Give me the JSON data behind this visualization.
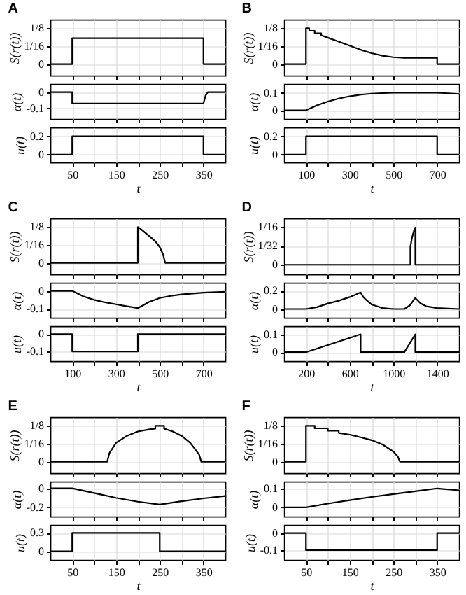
{
  "chart_data": [
    {
      "type": "line",
      "title": "A",
      "ylabel": "S(r(t))",
      "tick_labels": "y",
      "grid": true,
      "xlim": [
        0,
        400
      ],
      "xticks": [
        50,
        {
          "value": 100,
          "label": null
        },
        150,
        {
          "value": 200,
          "label": null
        },
        250,
        {
          "value": 300,
          "label": null
        },
        350
      ],
      "ylim": [
        -0.04,
        0.155
      ],
      "yticks": [
        0,
        {
          "value": 0.0625,
          "label": "1/16"
        },
        {
          "value": 0.125,
          "label": "1/8"
        }
      ],
      "x": [
        0,
        50,
        50,
        350,
        350,
        400
      ],
      "series": [
        {
          "color": "#000000",
          "values": [
            0,
            0,
            0.09,
            0.09,
            0,
            0
          ]
        }
      ]
    },
    {
      "type": "line",
      "ylabel": "α(t)",
      "tick_labels": "y",
      "grid": true,
      "xlim": [
        0,
        400
      ],
      "xticks": [
        50,
        {
          "value": 100,
          "label": null
        },
        150,
        {
          "value": 200,
          "label": null
        },
        250,
        {
          "value": 300,
          "label": null
        },
        350
      ],
      "ylim": [
        -0.165,
        0.05
      ],
      "yticks": [
        -0.1,
        0
      ],
      "x": [
        0,
        50,
        50,
        350,
        355,
        360,
        400
      ],
      "series": [
        {
          "color": "#000000",
          "values": [
            0,
            0,
            -0.07,
            -0.07,
            -0.02,
            0,
            0
          ]
        }
      ]
    },
    {
      "type": "line",
      "ylabel": "u(t)",
      "xlabel": "t",
      "grid": true,
      "xlim": [
        0,
        400
      ],
      "xticks": [
        50,
        {
          "value": 100,
          "label": null
        },
        150,
        {
          "value": 200,
          "label": null
        },
        250,
        {
          "value": 300,
          "label": null
        },
        350
      ],
      "ylim": [
        -0.085,
        0.295
      ],
      "yticks": [
        0,
        0.2
      ],
      "x": [
        0,
        50,
        50,
        350,
        350,
        400
      ],
      "series": [
        {
          "color": "#000000",
          "values": [
            0,
            0,
            0.2,
            0.2,
            0,
            0
          ]
        }
      ]
    },
    {
      "type": "line",
      "title": "B",
      "ylabel": "S(r(t))",
      "tick_labels": "y",
      "grid": true,
      "xlim": [
        0,
        800
      ],
      "xticks": [
        100,
        {
          "value": 200,
          "label": null
        },
        300,
        {
          "value": 400,
          "label": null
        },
        500,
        {
          "value": 600,
          "label": null
        },
        700
      ],
      "ylim": [
        -0.04,
        0.155
      ],
      "yticks": [
        0,
        {
          "value": 0.0625,
          "label": "1/16"
        },
        {
          "value": 0.125,
          "label": "1/8"
        }
      ],
      "x": [
        0,
        100,
        100,
        115,
        115,
        140,
        140,
        170,
        170,
        200,
        250,
        300,
        350,
        400,
        450,
        500,
        550,
        600,
        700,
        700,
        800
      ],
      "series": [
        {
          "color": "#000000",
          "values": [
            0,
            0,
            0.125,
            0.125,
            0.116,
            0.116,
            0.107,
            0.107,
            0.1,
            0.092,
            0.078,
            0.064,
            0.05,
            0.038,
            0.029,
            0.024,
            0.022,
            0.022,
            0.022,
            0,
            0
          ]
        }
      ]
    },
    {
      "type": "line",
      "ylabel": "α(t)",
      "tick_labels": "y",
      "grid": true,
      "xlim": [
        0,
        800
      ],
      "xticks": [
        100,
        {
          "value": 200,
          "label": null
        },
        300,
        {
          "value": 400,
          "label": null
        },
        500,
        {
          "value": 600,
          "label": null
        },
        700
      ],
      "ylim": [
        -0.05,
        0.15
      ],
      "yticks": [
        0,
        0.1
      ],
      "x": [
        0,
        100,
        150,
        200,
        250,
        300,
        350,
        400,
        450,
        500,
        600,
        700,
        750,
        800
      ],
      "series": [
        {
          "color": "#000000",
          "values": [
            0,
            0,
            0.028,
            0.05,
            0.067,
            0.08,
            0.089,
            0.095,
            0.098,
            0.1,
            0.1,
            0.1,
            0.097,
            0.093
          ]
        }
      ]
    },
    {
      "type": "line",
      "ylabel": "u(t)",
      "xlabel": "t",
      "grid": true,
      "xlim": [
        0,
        800
      ],
      "xticks": [
        100,
        {
          "value": 200,
          "label": null
        },
        300,
        {
          "value": 400,
          "label": null
        },
        500,
        {
          "value": 600,
          "label": null
        },
        700
      ],
      "ylim": [
        -0.085,
        0.295
      ],
      "yticks": [
        0,
        0.2
      ],
      "x": [
        0,
        100,
        100,
        700,
        700,
        800
      ],
      "series": [
        {
          "color": "#000000",
          "values": [
            0,
            0,
            0.2,
            0.2,
            0,
            0
          ]
        }
      ]
    },
    {
      "type": "line",
      "title": "C",
      "ylabel": "S(r(t))",
      "tick_labels": "y",
      "grid": true,
      "xlim": [
        0,
        800
      ],
      "xticks": [
        100,
        {
          "value": 200,
          "label": null
        },
        300,
        {
          "value": 400,
          "label": null
        },
        500,
        {
          "value": 600,
          "label": null
        },
        700
      ],
      "ylim": [
        -0.04,
        0.155
      ],
      "yticks": [
        0,
        {
          "value": 0.0625,
          "label": "1/16"
        },
        {
          "value": 0.125,
          "label": "1/8"
        }
      ],
      "x": [
        0,
        400,
        400,
        410,
        450,
        480,
        500,
        515,
        525,
        800
      ],
      "series": [
        {
          "color": "#000000",
          "values": [
            0,
            0,
            0.125,
            0.12,
            0.095,
            0.075,
            0.055,
            0.03,
            0,
            0
          ]
        }
      ]
    },
    {
      "type": "line",
      "ylabel": "α(t)",
      "tick_labels": "y",
      "grid": true,
      "xlim": [
        0,
        800
      ],
      "xticks": [
        100,
        {
          "value": 200,
          "label": null
        },
        300,
        {
          "value": 400,
          "label": null
        },
        500,
        {
          "value": 600,
          "label": null
        },
        700
      ],
      "ylim": [
        -0.15,
        0.045
      ],
      "yticks": [
        -0.1,
        0
      ],
      "x": [
        0,
        100,
        150,
        200,
        250,
        300,
        350,
        400,
        425,
        450,
        500,
        550,
        600,
        700,
        800
      ],
      "series": [
        {
          "color": "#000000",
          "values": [
            0,
            0,
            -0.03,
            -0.05,
            -0.064,
            -0.075,
            -0.086,
            -0.096,
            -0.08,
            -0.062,
            -0.04,
            -0.028,
            -0.02,
            -0.01,
            -0.005
          ]
        }
      ]
    },
    {
      "type": "line",
      "ylabel": "u(t)",
      "xlabel": "t",
      "grid": true,
      "xlim": [
        0,
        800
      ],
      "xticks": [
        100,
        {
          "value": 200,
          "label": null
        },
        300,
        {
          "value": 400,
          "label": null
        },
        500,
        {
          "value": 600,
          "label": null
        },
        700
      ],
      "ylim": [
        -0.155,
        0.045
      ],
      "yticks": [
        -0.1,
        0
      ],
      "x": [
        0,
        100,
        100,
        400,
        400,
        800
      ],
      "series": [
        {
          "color": "#000000",
          "values": [
            0,
            0,
            -0.1,
            -0.1,
            0,
            0
          ]
        }
      ]
    },
    {
      "type": "line",
      "title": "D",
      "ylabel": "S(r(t))",
      "tick_labels": "y",
      "grid": true,
      "xlim": [
        0,
        1600
      ],
      "xticks": [
        200,
        {
          "value": 400,
          "label": null
        },
        600,
        {
          "value": 800,
          "label": null
        },
        1000,
        {
          "value": 1200,
          "label": null
        },
        1400
      ],
      "ylim": [
        -0.016,
        0.077
      ],
      "yticks": [
        0,
        {
          "value": 0.03125,
          "label": "1/32"
        },
        {
          "value": 0.0625,
          "label": "1/16"
        }
      ],
      "x": [
        0,
        1155,
        1155,
        1170,
        1190,
        1200,
        1200,
        1600
      ],
      "series": [
        {
          "color": "#000000",
          "values": [
            0,
            0,
            0.03,
            0.045,
            0.058,
            0.062,
            0,
            0
          ]
        }
      ]
    },
    {
      "type": "line",
      "ylabel": "α(t)",
      "tick_labels": "y",
      "grid": true,
      "xlim": [
        0,
        1600
      ],
      "xticks": [
        200,
        {
          "value": 400,
          "label": null
        },
        600,
        {
          "value": 800,
          "label": null
        },
        1000,
        {
          "value": 1200,
          "label": null
        },
        1400
      ],
      "ylim": [
        -0.095,
        0.285
      ],
      "yticks": [
        0,
        0.2
      ],
      "x": [
        0,
        200,
        300,
        400,
        500,
        600,
        700,
        725,
        750,
        800,
        850,
        900,
        1000,
        1100,
        1150,
        1200,
        1225,
        1250,
        1300,
        1400,
        1600
      ],
      "series": [
        {
          "color": "#000000",
          "values": [
            0,
            0,
            0.02,
            0.06,
            0.09,
            0.13,
            0.18,
            0.13,
            0.1,
            0.05,
            0.03,
            0.01,
            0,
            0,
            0.04,
            0.12,
            0.09,
            0.06,
            0.03,
            0.01,
            0
          ]
        }
      ]
    },
    {
      "type": "line",
      "ylabel": "u(t)",
      "xlabel": "t",
      "grid": true,
      "xlim": [
        0,
        1600
      ],
      "xticks": [
        200,
        {
          "value": 400,
          "label": null
        },
        600,
        {
          "value": 800,
          "label": null
        },
        1000,
        {
          "value": 1200,
          "label": null
        },
        1400
      ],
      "ylim": [
        -0.05,
        0.145
      ],
      "yticks": [
        0,
        0.1
      ],
      "x": [
        0,
        200,
        700,
        700,
        1100,
        1200,
        1200,
        1600
      ],
      "series": [
        {
          "color": "#000000",
          "values": [
            0,
            0,
            0.1,
            0,
            0,
            0.1,
            0,
            0
          ]
        }
      ]
    },
    {
      "type": "line",
      "title": "E",
      "ylabel": "S(r(t))",
      "tick_labels": "y",
      "grid": true,
      "xlim": [
        0,
        400
      ],
      "xticks": [
        50,
        {
          "value": 100,
          "label": null
        },
        150,
        {
          "value": 200,
          "label": null
        },
        250,
        {
          "value": 300,
          "label": null
        },
        350
      ],
      "ylim": [
        -0.04,
        0.155
      ],
      "yticks": [
        0,
        {
          "value": 0.0625,
          "label": "1/16"
        },
        {
          "value": 0.125,
          "label": "1/8"
        }
      ],
      "x": [
        0,
        130,
        135,
        150,
        175,
        200,
        225,
        240,
        240,
        260,
        260,
        280,
        300,
        320,
        340,
        345,
        400
      ],
      "series": [
        {
          "color": "#000000",
          "values": [
            0,
            0,
            0.03,
            0.065,
            0.09,
            0.105,
            0.112,
            0.115,
            0.125,
            0.125,
            0.115,
            0.105,
            0.09,
            0.065,
            0.025,
            0,
            0
          ]
        }
      ]
    },
    {
      "type": "line",
      "ylabel": "α(t)",
      "tick_labels": "y",
      "grid": true,
      "xlim": [
        0,
        400
      ],
      "xticks": [
        50,
        {
          "value": 100,
          "label": null
        },
        150,
        {
          "value": 200,
          "label": null
        },
        250,
        {
          "value": 300,
          "label": null
        },
        350
      ],
      "ylim": [
        -0.295,
        0.07
      ],
      "yticks": [
        -0.2,
        0
      ],
      "x": [
        0,
        50,
        100,
        150,
        200,
        250,
        300,
        350,
        400
      ],
      "series": [
        {
          "color": "#000000",
          "values": [
            0,
            0,
            -0.05,
            -0.1,
            -0.14,
            -0.17,
            -0.135,
            -0.105,
            -0.08
          ]
        }
      ]
    },
    {
      "type": "line",
      "ylabel": "u(t)",
      "xlabel": "t",
      "grid": true,
      "xlim": [
        0,
        400
      ],
      "xticks": [
        50,
        {
          "value": 100,
          "label": null
        },
        150,
        {
          "value": 200,
          "label": null
        },
        250,
        {
          "value": 300,
          "label": null
        },
        350
      ],
      "ylim": [
        -0.14,
        0.43
      ],
      "yticks": [
        0,
        0.3
      ],
      "x": [
        0,
        50,
        50,
        250,
        250,
        400
      ],
      "series": [
        {
          "color": "#000000",
          "values": [
            0,
            0,
            0.3,
            0.3,
            0,
            0
          ]
        }
      ]
    },
    {
      "type": "line",
      "title": "F",
      "ylabel": "S(r(t))",
      "tick_labels": "y",
      "grid": true,
      "xlim": [
        0,
        400
      ],
      "xticks": [
        50,
        {
          "value": 100,
          "label": null
        },
        150,
        {
          "value": 200,
          "label": null
        },
        250,
        {
          "value": 300,
          "label": null
        },
        350
      ],
      "ylim": [
        -0.04,
        0.155
      ],
      "yticks": [
        0,
        {
          "value": 0.0625,
          "label": "1/16"
        },
        {
          "value": 0.125,
          "label": "1/8"
        }
      ],
      "x": [
        0,
        50,
        50,
        70,
        70,
        100,
        100,
        125,
        125,
        150,
        175,
        200,
        225,
        250,
        260,
        265,
        400
      ],
      "series": [
        {
          "color": "#000000",
          "values": [
            0,
            0,
            0.125,
            0.125,
            0.116,
            0.116,
            0.108,
            0.108,
            0.1,
            0.094,
            0.085,
            0.075,
            0.06,
            0.035,
            0.018,
            0,
            0
          ]
        }
      ]
    },
    {
      "type": "line",
      "ylabel": "α(t)",
      "tick_labels": "y",
      "grid": true,
      "xlim": [
        0,
        400
      ],
      "xticks": [
        50,
        {
          "value": 100,
          "label": null
        },
        150,
        {
          "value": 200,
          "label": null
        },
        250,
        {
          "value": 300,
          "label": null
        },
        350
      ],
      "ylim": [
        -0.048,
        0.136
      ],
      "yticks": [
        0,
        0.1
      ],
      "x": [
        0,
        50,
        100,
        150,
        200,
        250,
        300,
        350,
        400
      ],
      "series": [
        {
          "color": "#000000",
          "values": [
            0,
            0,
            0.02,
            0.038,
            0.055,
            0.07,
            0.085,
            0.1,
            0.09
          ]
        }
      ]
    },
    {
      "type": "line",
      "ylabel": "u(t)",
      "xlabel": "t",
      "grid": true,
      "xlim": [
        0,
        400
      ],
      "xticks": [
        50,
        {
          "value": 100,
          "label": null
        },
        150,
        {
          "value": 200,
          "label": null
        },
        250,
        {
          "value": 300,
          "label": null
        },
        350
      ],
      "ylim": [
        -0.158,
        0.0475
      ],
      "yticks": [
        -0.1,
        0
      ],
      "x": [
        0,
        50,
        50,
        350,
        350,
        400
      ],
      "series": [
        {
          "color": "#000000",
          "values": [
            0,
            0,
            -0.1,
            -0.1,
            0,
            0
          ]
        }
      ]
    }
  ]
}
